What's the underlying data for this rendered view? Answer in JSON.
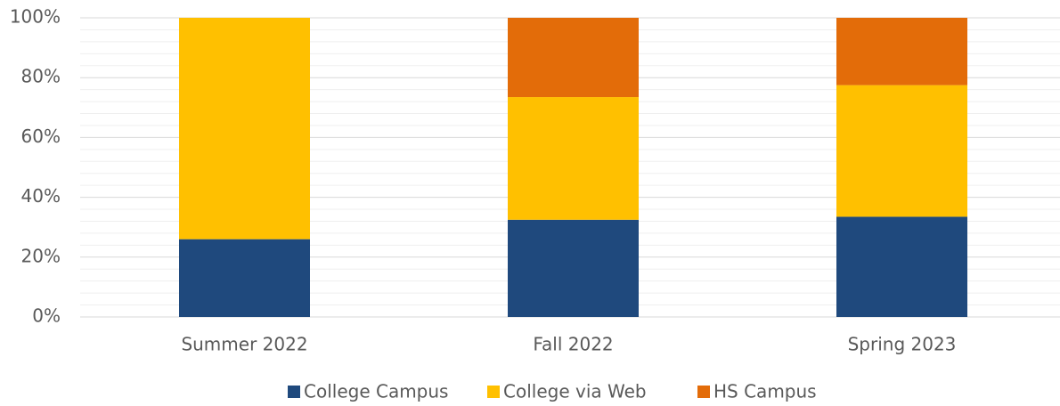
{
  "chart_data": {
    "type": "stacked_bar_100",
    "categories": [
      "Summer 2022",
      "Fall 2022",
      "Spring 2023"
    ],
    "series": [
      {
        "name": "College Campus",
        "color": "#1f497d",
        "values": [
          26,
          32.5,
          33.5
        ]
      },
      {
        "name": "College via Web",
        "color": "#ffc000",
        "values": [
          74,
          41,
          44
        ]
      },
      {
        "name": "HS Campus",
        "color": "#e36c09",
        "values": [
          0,
          26.5,
          22.5
        ]
      }
    ],
    "ylim": [
      0,
      100
    ],
    "yticks": [
      {
        "value": 0,
        "label": "0%"
      },
      {
        "value": 20,
        "label": "20%"
      },
      {
        "value": 40,
        "label": "40%"
      },
      {
        "value": 60,
        "label": "60%"
      },
      {
        "value": 80,
        "label": "80%"
      },
      {
        "value": 100,
        "label": "100%"
      }
    ],
    "grid": true,
    "minor_grid": true,
    "legend": "bottom"
  }
}
